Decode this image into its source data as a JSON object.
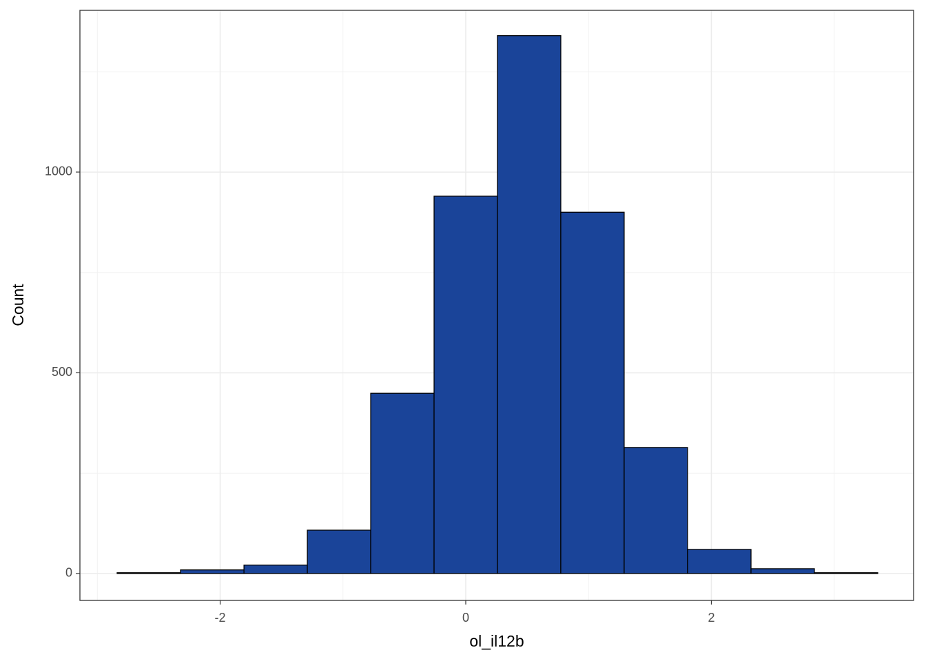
{
  "chart_data": {
    "type": "histogram",
    "x_label": "ol_il12b",
    "y_label": "Count",
    "bins": [
      -2.839,
      -2.323,
      -1.806,
      -1.29,
      -0.774,
      -0.258,
      0.258,
      0.774,
      1.29,
      1.806,
      2.323,
      2.839,
      3.355
    ],
    "values": [
      2,
      9,
      21,
      108,
      449,
      940,
      1340,
      900,
      314,
      60,
      12,
      2
    ],
    "color": "#1a4499",
    "edge_color": "#000000",
    "xlim": [
      -3.142,
      3.647
    ],
    "ylim": [
      -67,
      1403
    ],
    "xticks": [
      -2,
      0,
      2
    ],
    "yticks": [
      0,
      500,
      1000
    ],
    "x_minor_grid": [
      -3,
      -1,
      1,
      3
    ],
    "y_minor_grid": [
      250,
      750,
      1250
    ],
    "grid": true
  }
}
